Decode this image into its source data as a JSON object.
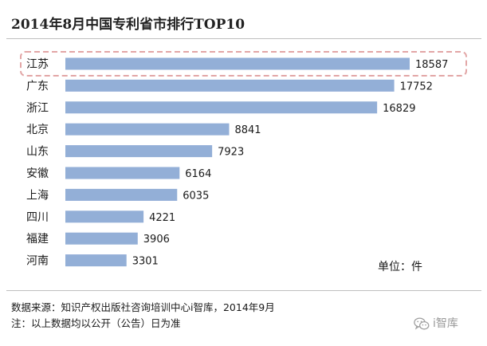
{
  "chart_data": {
    "type": "bar",
    "orientation": "horizontal",
    "title": "2014年8月中国专利省市排行TOP10",
    "categories": [
      "江苏",
      "广东",
      "浙江",
      "北京",
      "山东",
      "安徽",
      "上海",
      "四川",
      "福建",
      "河南"
    ],
    "values": [
      18587,
      17752,
      16829,
      8841,
      7923,
      6164,
      6035,
      4221,
      3906,
      3301
    ],
    "xlim": [
      0,
      20000
    ],
    "unit_label": "单位：件",
    "bar_color": "#93afd7",
    "highlight_color": "#e2a6a6",
    "highlighted_category": "江苏",
    "grid": false,
    "legend": "none",
    "axes_visible": false
  },
  "footer": {
    "source": "数据来源：知识产权出版社咨询培训中心i智库，2014年9月",
    "note": "注：以上数据均以公开（公告）日为准"
  },
  "watermark": {
    "text": "i智库",
    "icon": "wechat-icon"
  }
}
